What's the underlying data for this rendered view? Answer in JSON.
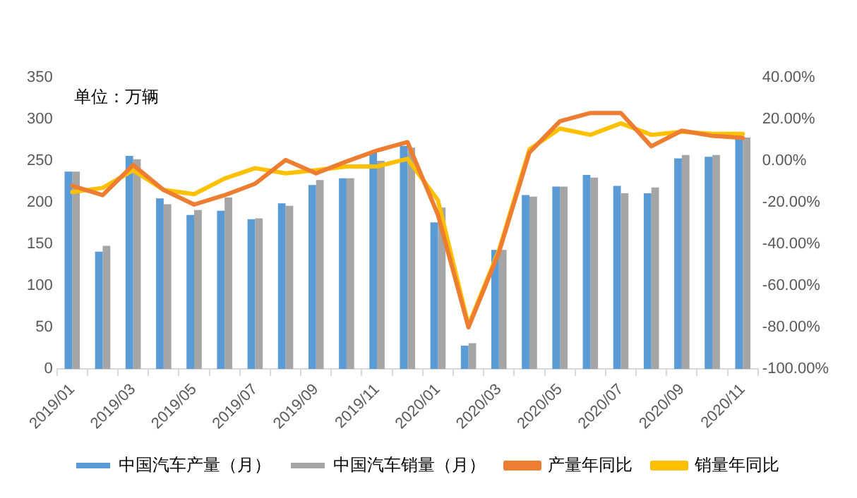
{
  "chart_data": {
    "type": "bar",
    "categories": [
      "2019/01",
      null,
      "2019/03",
      null,
      "2019/05",
      null,
      "2019/07",
      null,
      "2019/09",
      null,
      "2019/11",
      null,
      "2020/01",
      null,
      "2020/03",
      null,
      "2020/05",
      null,
      "2020/07",
      null,
      "2020/09",
      null,
      "2020/11"
    ],
    "series": [
      {
        "name": "中国汽车产量（月）",
        "color": "#5b9bd5",
        "values": [
          237,
          141,
          256,
          205,
          185,
          190,
          180,
          199,
          221,
          229,
          261,
          268,
          176,
          28,
          143,
          209,
          219,
          233,
          220,
          211,
          253,
          255,
          280
        ]
      },
      {
        "name": "中国汽车销量（月）",
        "color": "#a5a5a5",
        "values": [
          237,
          148,
          252,
          198,
          191,
          206,
          181,
          196,
          227,
          229,
          250,
          266,
          194,
          31,
          143,
          207,
          219,
          230,
          211,
          218,
          257,
          257,
          278
        ]
      },
      {
        "name": "产量年同比",
        "color": "#ed7d31",
        "type": "line",
        "axis": "y2",
        "values": [
          -12,
          -16.5,
          -2,
          -14,
          -21,
          -16.5,
          -11,
          0.4,
          -6,
          -0.3,
          5,
          9,
          -26,
          -80,
          -44,
          4,
          19,
          23,
          23,
          7,
          14.5,
          12,
          11
        ]
      },
      {
        "name": "销量年同比",
        "color": "#ffc000",
        "type": "line",
        "axis": "y2",
        "values": [
          -15,
          -13,
          -4.5,
          -14,
          -16,
          -8.5,
          -3.5,
          -6,
          -4.5,
          -2.7,
          -2.7,
          1,
          -19,
          -79,
          -43,
          5.5,
          15.5,
          12.5,
          18,
          12.5,
          14,
          13,
          13
        ]
      }
    ],
    "ylim": [
      0,
      350
    ],
    "yticks": [
      0,
      50,
      100,
      150,
      200,
      250,
      300,
      350
    ],
    "y2lim": [
      -100,
      40
    ],
    "y2ticks": [
      {
        "value": -100,
        "label": "-100.00%"
      },
      {
        "value": -80,
        "label": "-80.00%"
      },
      {
        "value": -60,
        "label": "-60.00%"
      },
      {
        "value": -40,
        "label": "-40.00%"
      },
      {
        "value": -20,
        "label": "-20.00%"
      },
      {
        "value": 0,
        "label": "0.00%"
      },
      {
        "value": 20,
        "label": "20.00%"
      },
      {
        "value": 40,
        "label": "40.00%"
      }
    ],
    "annotations": [
      "单位：万辆"
    ],
    "grid": false,
    "legend": "bottom",
    "marker": "none",
    "line_style": "solid"
  }
}
